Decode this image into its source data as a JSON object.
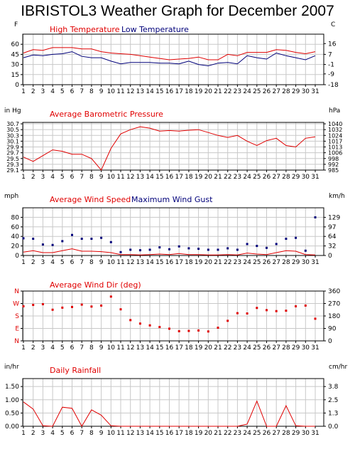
{
  "title": "IBRISTOL3 Weather Graph for December 2007",
  "colors": {
    "red": "#e00000",
    "blue": "#00007a",
    "grid": "#c8c8c8",
    "axis": "#000000"
  },
  "chart_data": [
    {
      "type": "line",
      "label": "High Temperature / Low Temperature",
      "left_unit": "F",
      "right_unit": "C",
      "x": [
        1,
        2,
        3,
        4,
        5,
        6,
        7,
        8,
        9,
        10,
        11,
        12,
        13,
        14,
        15,
        16,
        17,
        18,
        19,
        20,
        21,
        22,
        23,
        24,
        25,
        26,
        27,
        28,
        29,
        30,
        31
      ],
      "ylim": [
        0,
        75
      ],
      "left_ticks": [
        "60",
        "45",
        "30",
        "15",
        "0"
      ],
      "left_tick_values": [
        60,
        45,
        30,
        15,
        0
      ],
      "right_ticks": [
        "16",
        "7",
        "-1",
        "-9",
        "-18"
      ],
      "right_tick_values": [
        61,
        45,
        30,
        16,
        0
      ],
      "series": [
        {
          "name": "High Temperature",
          "color": "#e00000",
          "values": [
            47,
            52,
            51,
            55,
            55,
            55,
            53,
            53,
            49,
            47,
            46,
            45,
            43,
            41,
            39,
            37,
            38,
            39,
            41,
            37,
            37,
            45,
            43,
            48,
            48,
            48,
            52,
            51,
            48,
            46,
            49
          ]
        },
        {
          "name": "Low Temperature",
          "color": "#00007a",
          "values": [
            40,
            44,
            43,
            45,
            46,
            49,
            42,
            40,
            40,
            35,
            31,
            33,
            33,
            33,
            32,
            32,
            31,
            35,
            30,
            28,
            32,
            33,
            31,
            43,
            40,
            38,
            47,
            43,
            40,
            37,
            43
          ]
        }
      ]
    },
    {
      "type": "line",
      "label": "Average Barometric Pressure",
      "left_unit": "in Hg",
      "right_unit": "hPa",
      "x": [
        1,
        2,
        3,
        4,
        5,
        6,
        7,
        8,
        9,
        10,
        11,
        12,
        13,
        14,
        15,
        16,
        17,
        18,
        19,
        20,
        21,
        22,
        23,
        24,
        25,
        26,
        27,
        28,
        29,
        30,
        31
      ],
      "ylim": [
        29.1,
        30.75
      ],
      "left_ticks": [
        "30.7",
        "30.5",
        "30.3",
        "30.1",
        "29.9",
        "29.7",
        "29.5",
        "29.3",
        "29.1"
      ],
      "left_tick_values": [
        30.7,
        30.5,
        30.3,
        30.1,
        29.9,
        29.7,
        29.5,
        29.3,
        29.1
      ],
      "right_ticks": [
        "1040",
        "1032",
        "1024",
        "1017",
        "1013",
        "1006",
        "998",
        "992",
        "985"
      ],
      "right_tick_values": [
        30.7,
        30.5,
        30.3,
        30.1,
        29.9,
        29.7,
        29.5,
        29.3,
        29.1
      ],
      "series": [
        {
          "name": "Average Barometric Pressure",
          "color": "#e00000",
          "values": [
            29.55,
            29.4,
            29.6,
            29.8,
            29.75,
            29.65,
            29.65,
            29.5,
            29.1,
            29.85,
            30.35,
            30.5,
            30.6,
            30.55,
            30.45,
            30.47,
            30.45,
            30.48,
            30.5,
            30.4,
            30.3,
            30.23,
            30.3,
            30.1,
            29.95,
            30.12,
            30.2,
            29.95,
            29.9,
            30.2,
            30.25
          ]
        }
      ]
    },
    {
      "type": "line",
      "label": "Average Wind Speed / Maximum Wind Gust",
      "left_unit": "mph",
      "right_unit": "km/h",
      "x": [
        1,
        2,
        3,
        4,
        5,
        6,
        7,
        8,
        9,
        10,
        11,
        12,
        13,
        14,
        15,
        16,
        17,
        18,
        19,
        20,
        21,
        22,
        23,
        24,
        25,
        26,
        27,
        28,
        29,
        30,
        31
      ],
      "ylim": [
        0,
        100
      ],
      "left_ticks": [
        "80",
        "60",
        "40",
        "20",
        "0"
      ],
      "left_tick_values": [
        80,
        60,
        40,
        20,
        0
      ],
      "right_ticks": [
        "129",
        "97",
        "64",
        "32",
        "0"
      ],
      "right_tick_values": [
        80,
        60,
        40,
        20,
        0
      ],
      "series": [
        {
          "name": "Average Wind Speed",
          "color": "#e00000",
          "style": "line",
          "values": [
            7,
            10,
            6,
            6,
            10,
            14,
            9,
            9,
            8,
            6,
            2,
            2,
            1,
            2,
            3,
            2,
            4,
            2,
            2,
            1,
            1,
            2,
            1,
            5,
            3,
            2,
            6,
            10,
            9,
            2,
            1
          ]
        },
        {
          "name": "Maximum Wind Gust",
          "color": "#00007a",
          "style": "points",
          "values": [
            36,
            35,
            23,
            22,
            30,
            43,
            35,
            35,
            37,
            28,
            7,
            12,
            11,
            12,
            17,
            13,
            19,
            15,
            14,
            12,
            12,
            15,
            12,
            24,
            20,
            16,
            24,
            35,
            37,
            10,
            80
          ]
        }
      ]
    },
    {
      "type": "scatter",
      "label": "Average Wind Dir (deg)",
      "left_unit": "",
      "right_unit": "",
      "x": [
        1,
        2,
        3,
        4,
        5,
        6,
        7,
        8,
        9,
        10,
        11,
        12,
        13,
        14,
        15,
        16,
        17,
        18,
        19,
        20,
        21,
        22,
        23,
        24,
        25,
        26,
        27,
        28,
        29,
        30,
        31
      ],
      "ylim": [
        0,
        360
      ],
      "left_ticks": [
        "N",
        "W",
        "S",
        "E",
        "N"
      ],
      "left_tick_values": [
        360,
        270,
        180,
        90,
        0
      ],
      "right_ticks": [
        "360",
        "270",
        "180",
        "90",
        "0"
      ],
      "right_tick_values": [
        360,
        270,
        180,
        90,
        0
      ],
      "series": [
        {
          "name": "Average Wind Dir",
          "color": "#e00000",
          "values": [
            250,
            260,
            265,
            225,
            240,
            245,
            262,
            248,
            255,
            320,
            228,
            150,
            125,
            112,
            100,
            88,
            70,
            72,
            75,
            68,
            95,
            145,
            200,
            198,
            238,
            222,
            215,
            218,
            250,
            255,
            160
          ]
        }
      ]
    },
    {
      "type": "line",
      "label": "Daily Rainfall",
      "left_unit": "in/hr",
      "right_unit": "cm/hr",
      "x": [
        1,
        2,
        3,
        4,
        5,
        6,
        7,
        8,
        9,
        10,
        11,
        12,
        13,
        14,
        15,
        16,
        17,
        18,
        19,
        20,
        21,
        22,
        23,
        24,
        25,
        26,
        27,
        28,
        29,
        30,
        31
      ],
      "ylim": [
        0,
        1.8
      ],
      "left_ticks": [
        "1.50",
        "1.00",
        "0.50",
        "0.00"
      ],
      "left_tick_values": [
        1.5,
        1.0,
        0.5,
        0.0
      ],
      "right_ticks": [
        "3.8",
        "2.5",
        "1.3",
        "0.0"
      ],
      "right_tick_values": [
        1.5,
        1.0,
        0.5,
        0.0
      ],
      "series": [
        {
          "name": "Daily Rainfall",
          "color": "#e00000",
          "values": [
            0.92,
            0.65,
            0.02,
            0.0,
            0.72,
            0.68,
            0.0,
            0.62,
            0.42,
            0.02,
            0.0,
            0.0,
            0.0,
            0.0,
            0.0,
            0.0,
            0.0,
            0.0,
            0.0,
            0.0,
            0.0,
            0.0,
            0.0,
            0.08,
            0.95,
            0.0,
            0.0,
            0.78,
            0.02,
            0.0,
            0.0
          ]
        }
      ]
    }
  ]
}
